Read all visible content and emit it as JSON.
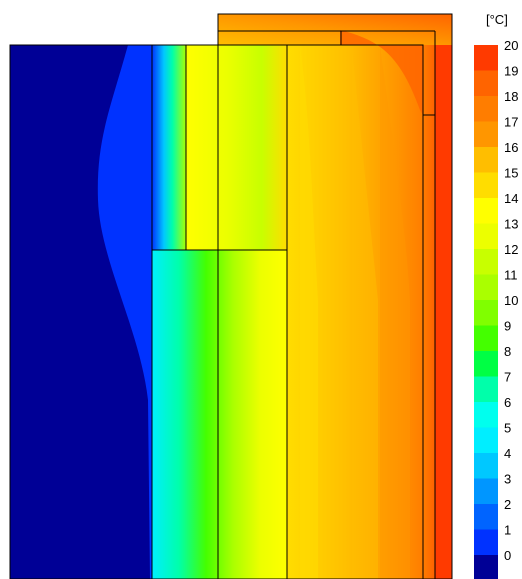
{
  "legend": {
    "unit": "[°C]",
    "labels": [
      "20",
      "19",
      "18",
      "17",
      "16",
      "15",
      "14",
      "13",
      "12",
      "11",
      "10",
      "9",
      "8",
      "7",
      "6",
      "5",
      "4",
      "3",
      "2",
      "1",
      "0"
    ],
    "colors": [
      "#ff3a00",
      "#ff6400",
      "#ff7d00",
      "#ff9600",
      "#ffbe00",
      "#ffdd00",
      "#ffff00",
      "#ecff00",
      "#c8ff00",
      "#aaff00",
      "#80ff00",
      "#44ff00",
      "#00ff44",
      "#00ffaa",
      "#00ffee",
      "#00eeff",
      "#00c8ff",
      "#0096ff",
      "#0064ff",
      "#0032ff",
      "#000096"
    ]
  },
  "field_colors": {
    "cold": "#000096",
    "blue": "#0032ff",
    "warm_orange": "#ff9600",
    "hot": "#ff3a00"
  }
}
